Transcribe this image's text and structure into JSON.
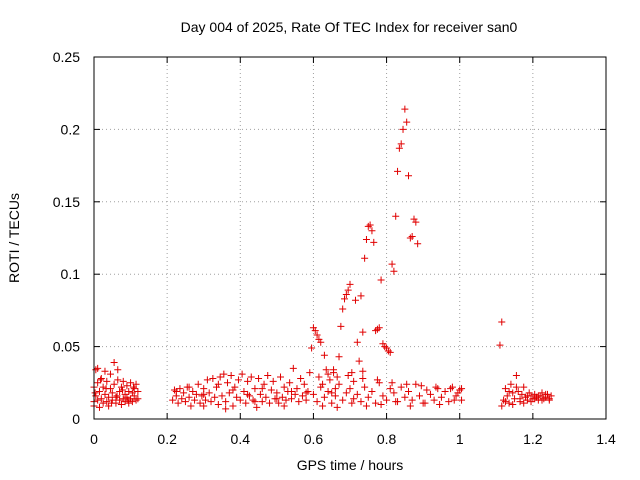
{
  "chart_data": {
    "type": "scatter",
    "title": "Day 004 of 2025, Rate Of TEC Index for receiver san0",
    "xlabel": "GPS time / hours",
    "ylabel": "ROTI / TECUs",
    "xlim": [
      0,
      1.4
    ],
    "ylim": [
      0,
      0.25
    ],
    "x_ticks": [
      "0",
      "0.2",
      "0.4",
      "0.6",
      "0.8",
      "1",
      "1.2",
      "1.4"
    ],
    "y_ticks": [
      "0",
      "0.05",
      "0.1",
      "0.15",
      "0.2",
      "0.25"
    ],
    "grid": true,
    "marker": "+",
    "color": "#e00000",
    "points": [
      [
        0.0,
        0.012
      ],
      [
        0.0,
        0.022
      ],
      [
        0.0,
        0.009
      ],
      [
        0.005,
        0.034
      ],
      [
        0.005,
        0.016
      ],
      [
        0.01,
        0.013
      ],
      [
        0.01,
        0.025
      ],
      [
        0.01,
        0.035
      ],
      [
        0.015,
        0.019
      ],
      [
        0.015,
        0.008
      ],
      [
        0.02,
        0.014
      ],
      [
        0.02,
        0.028
      ],
      [
        0.025,
        0.011
      ],
      [
        0.025,
        0.022
      ],
      [
        0.03,
        0.017
      ],
      [
        0.03,
        0.033
      ],
      [
        0.035,
        0.012
      ],
      [
        0.035,
        0.026
      ],
      [
        0.04,
        0.015
      ],
      [
        0.04,
        0.009
      ],
      [
        0.045,
        0.021
      ],
      [
        0.045,
        0.031
      ],
      [
        0.05,
        0.013
      ],
      [
        0.05,
        0.018
      ],
      [
        0.055,
        0.024
      ],
      [
        0.055,
        0.039
      ],
      [
        0.06,
        0.011
      ],
      [
        0.06,
        0.015
      ],
      [
        0.065,
        0.027
      ],
      [
        0.065,
        0.034
      ],
      [
        0.07,
        0.013
      ],
      [
        0.07,
        0.019
      ],
      [
        0.075,
        0.022
      ],
      [
        0.075,
        0.01
      ],
      [
        0.08,
        0.014
      ],
      [
        0.08,
        0.026
      ],
      [
        0.085,
        0.017
      ],
      [
        0.085,
        0.012
      ],
      [
        0.09,
        0.023
      ],
      [
        0.09,
        0.015
      ],
      [
        0.095,
        0.011
      ],
      [
        0.095,
        0.019
      ],
      [
        0.1,
        0.025
      ],
      [
        0.1,
        0.014
      ],
      [
        0.105,
        0.018
      ],
      [
        0.105,
        0.012
      ],
      [
        0.11,
        0.021
      ],
      [
        0.11,
        0.016
      ],
      [
        0.115,
        0.013
      ],
      [
        0.115,
        0.024
      ],
      [
        0.12,
        0.019
      ],
      [
        0.12,
        0.014
      ],
      [
        0.003,
        0.018
      ],
      [
        0.018,
        0.027
      ],
      [
        0.033,
        0.021
      ],
      [
        0.048,
        0.011
      ],
      [
        0.063,
        0.016
      ],
      [
        0.078,
        0.02
      ],
      [
        0.093,
        0.013
      ],
      [
        0.108,
        0.022
      ],
      [
        0.215,
        0.013
      ],
      [
        0.22,
        0.02
      ],
      [
        0.225,
        0.016
      ],
      [
        0.23,
        0.011
      ],
      [
        0.235,
        0.021
      ],
      [
        0.24,
        0.014
      ],
      [
        0.245,
        0.018
      ],
      [
        0.25,
        0.012
      ],
      [
        0.255,
        0.022
      ],
      [
        0.26,
        0.015
      ],
      [
        0.265,
        0.009
      ],
      [
        0.27,
        0.019
      ],
      [
        0.275,
        0.013
      ],
      [
        0.28,
        0.017
      ],
      [
        0.285,
        0.024
      ],
      [
        0.29,
        0.011
      ],
      [
        0.295,
        0.016
      ],
      [
        0.3,
        0.021
      ],
      [
        0.305,
        0.013
      ],
      [
        0.31,
        0.027
      ],
      [
        0.315,
        0.018
      ],
      [
        0.32,
        0.012
      ],
      [
        0.325,
        0.028
      ],
      [
        0.33,
        0.015
      ],
      [
        0.335,
        0.022
      ],
      [
        0.34,
        0.01
      ],
      [
        0.345,
        0.029
      ],
      [
        0.35,
        0.016
      ],
      [
        0.355,
        0.031
      ],
      [
        0.36,
        0.012
      ],
      [
        0.365,
        0.025
      ],
      [
        0.37,
        0.018
      ],
      [
        0.375,
        0.03
      ],
      [
        0.38,
        0.009
      ],
      [
        0.385,
        0.022
      ],
      [
        0.39,
        0.015
      ],
      [
        0.395,
        0.027
      ],
      [
        0.4,
        0.013
      ],
      [
        0.405,
        0.031
      ],
      [
        0.41,
        0.019
      ],
      [
        0.415,
        0.011
      ],
      [
        0.42,
        0.026
      ],
      [
        0.425,
        0.016
      ],
      [
        0.43,
        0.029
      ],
      [
        0.435,
        0.013
      ],
      [
        0.44,
        0.021
      ],
      [
        0.445,
        0.008
      ],
      [
        0.45,
        0.028
      ],
      [
        0.455,
        0.017
      ],
      [
        0.46,
        0.012
      ],
      [
        0.465,
        0.024
      ],
      [
        0.47,
        0.015
      ],
      [
        0.475,
        0.03
      ],
      [
        0.48,
        0.011
      ],
      [
        0.485,
        0.02
      ],
      [
        0.49,
        0.026
      ],
      [
        0.495,
        0.014
      ],
      [
        0.5,
        0.018
      ],
      [
        0.505,
        0.011
      ],
      [
        0.51,
        0.029
      ],
      [
        0.515,
        0.015
      ],
      [
        0.52,
        0.022
      ],
      [
        0.525,
        0.013
      ],
      [
        0.53,
        0.019
      ],
      [
        0.535,
        0.025
      ],
      [
        0.54,
        0.014
      ],
      [
        0.545,
        0.035
      ],
      [
        0.55,
        0.017
      ],
      [
        0.555,
        0.021
      ],
      [
        0.56,
        0.012
      ],
      [
        0.565,
        0.028
      ],
      [
        0.57,
        0.016
      ],
      [
        0.575,
        0.024
      ],
      [
        0.58,
        0.013
      ],
      [
        0.585,
        0.019
      ],
      [
        0.59,
        0.032
      ],
      [
        0.225,
        0.019
      ],
      [
        0.26,
        0.022
      ],
      [
        0.3,
        0.017
      ],
      [
        0.34,
        0.024
      ],
      [
        0.38,
        0.02
      ],
      [
        0.42,
        0.017
      ],
      [
        0.46,
        0.021
      ],
      [
        0.5,
        0.014
      ],
      [
        0.54,
        0.019
      ],
      [
        0.58,
        0.018
      ],
      [
        0.3,
        0.009
      ],
      [
        0.36,
        0.007
      ],
      [
        0.44,
        0.012
      ],
      [
        0.52,
        0.009
      ],
      [
        0.595,
        0.049
      ],
      [
        0.6,
        0.063
      ],
      [
        0.605,
        0.061
      ],
      [
        0.61,
        0.058
      ],
      [
        0.615,
        0.055
      ],
      [
        0.62,
        0.053
      ],
      [
        0.625,
        0.024
      ],
      [
        0.63,
        0.044
      ],
      [
        0.635,
        0.034
      ],
      [
        0.64,
        0.031
      ],
      [
        0.645,
        0.027
      ],
      [
        0.65,
        0.018
      ],
      [
        0.655,
        0.032
      ],
      [
        0.66,
        0.021
      ],
      [
        0.665,
        0.029
      ],
      [
        0.67,
        0.043
      ],
      [
        0.675,
        0.064
      ],
      [
        0.68,
        0.076
      ],
      [
        0.685,
        0.083
      ],
      [
        0.69,
        0.086
      ],
      [
        0.695,
        0.089
      ],
      [
        0.7,
        0.093
      ],
      [
        0.705,
        0.032
      ],
      [
        0.71,
        0.026
      ],
      [
        0.715,
        0.082
      ],
      [
        0.72,
        0.053
      ],
      [
        0.725,
        0.04
      ],
      [
        0.73,
        0.085
      ],
      [
        0.735,
        0.033
      ],
      [
        0.74,
        0.111
      ],
      [
        0.745,
        0.124
      ],
      [
        0.75,
        0.133
      ],
      [
        0.755,
        0.134
      ],
      [
        0.76,
        0.13
      ],
      [
        0.765,
        0.122
      ],
      [
        0.77,
        0.061
      ],
      [
        0.775,
        0.062
      ],
      [
        0.78,
        0.063
      ],
      [
        0.785,
        0.096
      ],
      [
        0.79,
        0.052
      ],
      [
        0.795,
        0.05
      ],
      [
        0.8,
        0.049
      ],
      [
        0.805,
        0.047
      ],
      [
        0.81,
        0.046
      ],
      [
        0.815,
        0.107
      ],
      [
        0.82,
        0.102
      ],
      [
        0.825,
        0.14
      ],
      [
        0.83,
        0.171
      ],
      [
        0.835,
        0.187
      ],
      [
        0.84,
        0.19
      ],
      [
        0.845,
        0.2
      ],
      [
        0.85,
        0.214
      ],
      [
        0.855,
        0.205
      ],
      [
        0.86,
        0.168
      ],
      [
        0.865,
        0.125
      ],
      [
        0.87,
        0.126
      ],
      [
        0.875,
        0.138
      ],
      [
        0.88,
        0.136
      ],
      [
        0.885,
        0.121
      ],
      [
        0.735,
        0.06
      ],
      [
        0.6,
        0.017
      ],
      [
        0.61,
        0.012
      ],
      [
        0.62,
        0.022
      ],
      [
        0.63,
        0.015
      ],
      [
        0.64,
        0.019
      ],
      [
        0.65,
        0.011
      ],
      [
        0.66,
        0.016
      ],
      [
        0.67,
        0.024
      ],
      [
        0.68,
        0.013
      ],
      [
        0.69,
        0.018
      ],
      [
        0.7,
        0.021
      ],
      [
        0.71,
        0.014
      ],
      [
        0.72,
        0.017
      ],
      [
        0.73,
        0.012
      ],
      [
        0.74,
        0.022
      ],
      [
        0.75,
        0.015
      ],
      [
        0.76,
        0.019
      ],
      [
        0.77,
        0.011
      ],
      [
        0.78,
        0.025
      ],
      [
        0.79,
        0.016
      ],
      [
        0.8,
        0.013
      ],
      [
        0.81,
        0.021
      ],
      [
        0.82,
        0.018
      ],
      [
        0.83,
        0.012
      ],
      [
        0.84,
        0.022
      ],
      [
        0.85,
        0.015
      ],
      [
        0.86,
        0.019
      ],
      [
        0.87,
        0.013
      ],
      [
        0.88,
        0.024
      ],
      [
        0.89,
        0.016
      ],
      [
        0.9,
        0.011
      ],
      [
        0.91,
        0.02
      ],
      [
        0.92,
        0.017
      ],
      [
        0.93,
        0.013
      ],
      [
        0.94,
        0.021
      ],
      [
        0.95,
        0.015
      ],
      [
        0.96,
        0.019
      ],
      [
        0.97,
        0.012
      ],
      [
        0.98,
        0.022
      ],
      [
        0.99,
        0.016
      ],
      [
        1.0,
        0.02
      ],
      [
        1.005,
        0.013
      ],
      [
        0.615,
        0.029
      ],
      [
        0.655,
        0.034
      ],
      [
        0.695,
        0.03
      ],
      [
        0.735,
        0.028
      ],
      [
        0.775,
        0.027
      ],
      [
        0.815,
        0.025
      ],
      [
        0.855,
        0.024
      ],
      [
        0.895,
        0.023
      ],
      [
        0.935,
        0.022
      ],
      [
        0.975,
        0.021
      ],
      [
        0.995,
        0.018
      ],
      [
        0.625,
        0.009
      ],
      [
        0.665,
        0.008
      ],
      [
        0.705,
        0.011
      ],
      [
        0.745,
        0.009
      ],
      [
        0.785,
        0.01
      ],
      [
        0.825,
        0.012
      ],
      [
        0.865,
        0.009
      ],
      [
        0.905,
        0.011
      ],
      [
        0.945,
        0.01
      ],
      [
        0.985,
        0.013
      ],
      [
        1.005,
        0.021
      ],
      [
        1.11,
        0.051
      ],
      [
        1.115,
        0.067
      ],
      [
        1.12,
        0.013
      ],
      [
        1.125,
        0.021
      ],
      [
        1.13,
        0.016
      ],
      [
        1.135,
        0.011
      ],
      [
        1.14,
        0.024
      ],
      [
        1.145,
        0.018
      ],
      [
        1.15,
        0.014
      ],
      [
        1.155,
        0.03
      ],
      [
        1.16,
        0.019
      ],
      [
        1.165,
        0.012
      ],
      [
        1.17,
        0.017
      ],
      [
        1.175,
        0.022
      ],
      [
        1.18,
        0.015
      ],
      [
        1.185,
        0.013
      ],
      [
        1.19,
        0.018
      ],
      [
        1.195,
        0.016
      ],
      [
        1.2,
        0.014
      ],
      [
        1.205,
        0.017
      ],
      [
        1.21,
        0.015
      ],
      [
        1.215,
        0.013
      ],
      [
        1.22,
        0.016
      ],
      [
        1.225,
        0.018
      ],
      [
        1.23,
        0.014
      ],
      [
        1.235,
        0.015
      ],
      [
        1.24,
        0.017
      ],
      [
        1.245,
        0.013
      ],
      [
        1.25,
        0.016
      ],
      [
        1.115,
        0.009
      ],
      [
        1.125,
        0.012
      ],
      [
        1.135,
        0.019
      ],
      [
        1.145,
        0.01
      ],
      [
        1.155,
        0.022
      ],
      [
        1.165,
        0.014
      ],
      [
        1.175,
        0.011
      ],
      [
        1.185,
        0.016
      ],
      [
        1.195,
        0.012
      ],
      [
        1.205,
        0.014
      ],
      [
        1.215,
        0.016
      ],
      [
        1.225,
        0.013
      ],
      [
        1.235,
        0.017
      ],
      [
        1.245,
        0.014
      ]
    ]
  }
}
